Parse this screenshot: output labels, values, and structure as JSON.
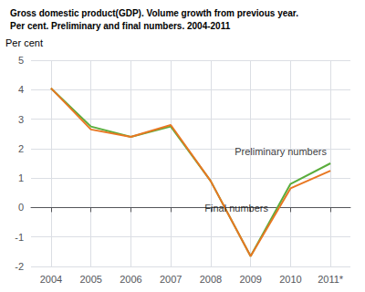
{
  "chart_data": {
    "type": "line",
    "title": "Gross domestic product(GDP). Volume growth from previous year.",
    "subtitle": "Per cent. Preliminary and final numbers. 2004-2011",
    "ylabel": "Per cent",
    "x": [
      2004,
      2005,
      2006,
      2007,
      2008,
      2009,
      2010,
      2011
    ],
    "series": [
      {
        "color": "#5aad3c",
        "values": [
          4.05,
          2.75,
          2.4,
          2.75,
          0.9,
          -1.65,
          0.8,
          1.5
        ]
      },
      {
        "color": "#e87722",
        "values": [
          4.05,
          2.65,
          2.4,
          2.8,
          0.9,
          -1.65,
          0.65,
          1.25
        ]
      }
    ],
    "annotations": [
      {
        "text": "Preliminary numbers",
        "x": 2008.6,
        "y": 1.72
      },
      {
        "text": "Final numbers",
        "x": 2007.85,
        "y": -0.18
      }
    ],
    "xlim": [
      2003.5,
      2011.5
    ],
    "xticks": [
      2004,
      2005,
      2006,
      2007,
      2008,
      2009,
      2010,
      {
        "value": 2011,
        "label": "2011*"
      }
    ],
    "ylim": [
      -2,
      5
    ],
    "yticks": [
      -2,
      -1,
      0,
      1,
      2,
      3,
      4,
      5
    ],
    "grid": true
  }
}
